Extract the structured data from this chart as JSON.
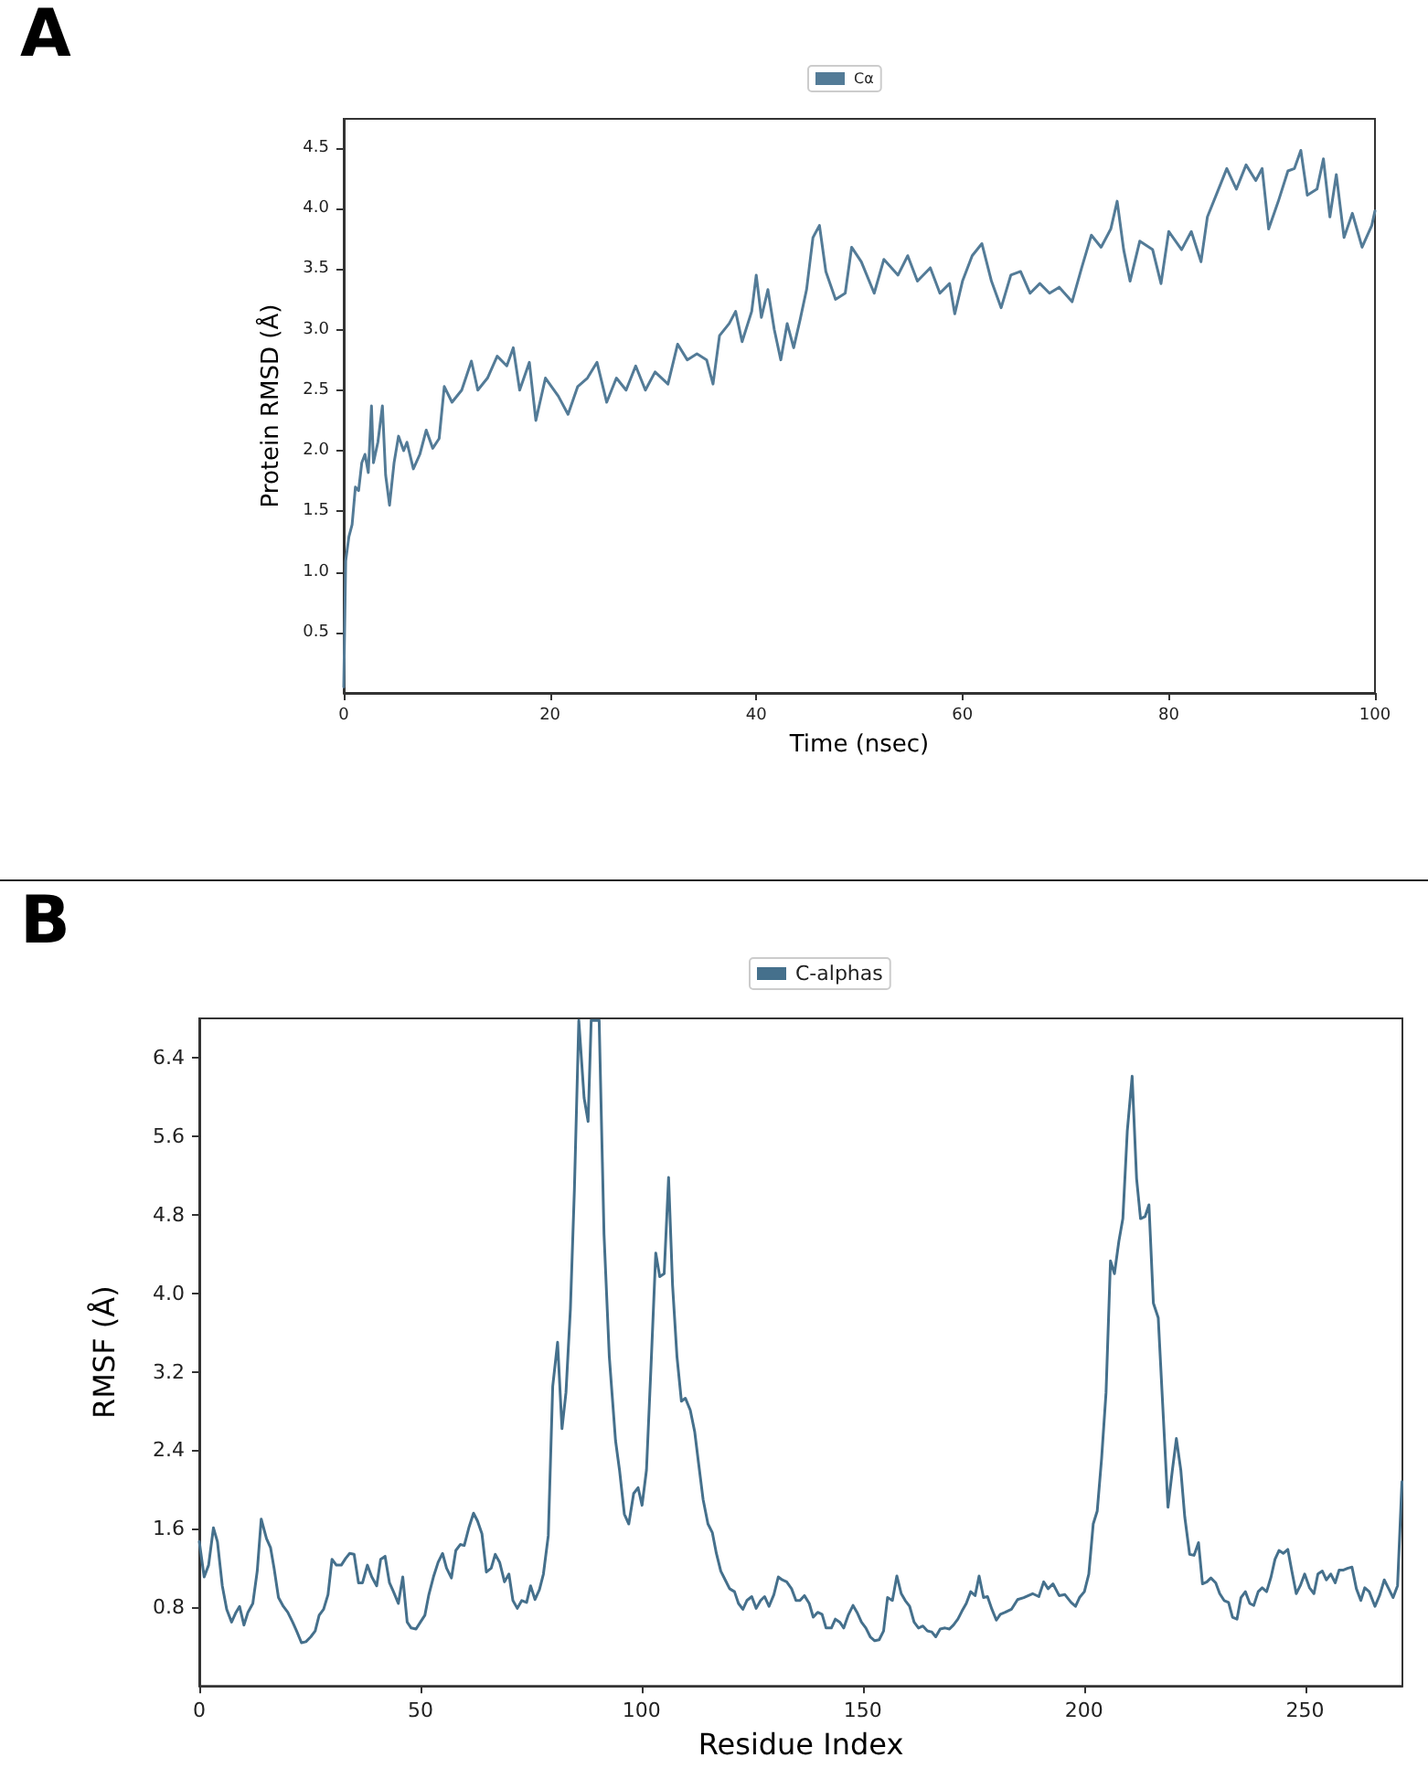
{
  "chart_data": [
    {
      "type": "line",
      "title": "A",
      "xlabel": "Time (nsec)",
      "ylabel": "Protein RMSD (Å)",
      "legend": "top",
      "grid": false,
      "marker": "none",
      "line_style": "solid",
      "xlim": [
        0,
        100
      ],
      "xticks": [
        0,
        20,
        40,
        60,
        80,
        100
      ],
      "ylim": [
        0,
        4.74
      ],
      "yticks": [
        0.5,
        {
          "value": 1,
          "label": "1.0"
        },
        1.5,
        {
          "value": 2,
          "label": "2.0"
        },
        2.5,
        {
          "value": 3,
          "label": "3.0"
        },
        3.5,
        {
          "value": 4,
          "label": "4.0"
        },
        4.5
      ],
      "series": [
        {
          "name": "Cα",
          "color": "#537b97",
          "x": [
            0,
            0.19,
            0.5,
            0.81,
            1.13,
            1.44,
            1.75,
            2.06,
            2.38,
            2.69,
            2.88,
            3.31,
            3.75,
            4.06,
            4.44,
            4.88,
            5.31,
            5.81,
            6.13,
            6.75,
            7.38,
            8.0,
            8.63,
            9.25,
            9.75,
            10.5,
            11.44,
            12.38,
            13.0,
            13.94,
            14.88,
            15.81,
            16.44,
            17.06,
            18.0,
            18.63,
            19.56,
            20.81,
            21.75,
            22.69,
            23.63,
            24.56,
            25.5,
            26.44,
            27.38,
            28.31,
            29.25,
            30.19,
            31.44,
            32.38,
            33.31,
            34.25,
            35.19,
            35.81,
            36.44,
            37.38,
            38.0,
            38.63,
            39.56,
            40.0,
            40.5,
            41.13,
            41.75,
            42.38,
            43.0,
            43.63,
            44.25,
            44.88,
            45.5,
            46.13,
            46.75,
            47.69,
            48.63,
            49.25,
            50.19,
            51.44,
            52.38,
            53.75,
            54.69,
            55.63,
            56.88,
            57.81,
            58.75,
            59.25,
            60.0,
            60.94,
            61.88,
            62.81,
            63.75,
            64.69,
            65.63,
            66.56,
            67.5,
            68.44,
            69.38,
            70.63,
            71.56,
            72.5,
            73.44,
            74.38,
            75.0,
            75.63,
            76.25,
            77.19,
            78.44,
            79.25,
            80.0,
            81.25,
            82.19,
            83.13,
            83.75,
            84.69,
            85.63,
            86.56,
            87.5,
            88.44,
            89.06,
            89.69,
            90.63,
            91.56,
            92.19,
            92.81,
            93.44,
            94.38,
            95.0,
            95.63,
            96.25,
            97.0,
            97.81,
            98.75,
            99.69,
            100
          ],
          "values": [
            0.05,
            1.09,
            1.29,
            1.39,
            1.7,
            1.67,
            1.9,
            1.97,
            1.82,
            2.37,
            1.9,
            2.07,
            2.37,
            1.8,
            1.55,
            1.9,
            2.12,
            2.0,
            2.07,
            1.85,
            1.97,
            2.17,
            2.02,
            2.1,
            2.53,
            2.4,
            2.5,
            2.74,
            2.5,
            2.6,
            2.78,
            2.7,
            2.85,
            2.5,
            2.73,
            2.25,
            2.6,
            2.45,
            2.3,
            2.53,
            2.6,
            2.73,
            2.4,
            2.6,
            2.5,
            2.7,
            2.5,
            2.65,
            2.55,
            2.88,
            2.75,
            2.8,
            2.75,
            2.55,
            2.95,
            3.05,
            3.15,
            2.9,
            3.15,
            3.45,
            3.1,
            3.33,
            3.0,
            2.75,
            3.05,
            2.85,
            3.08,
            3.33,
            3.76,
            3.86,
            3.48,
            3.25,
            3.3,
            3.68,
            3.56,
            3.3,
            3.58,
            3.45,
            3.61,
            3.4,
            3.51,
            3.3,
            3.38,
            3.13,
            3.4,
            3.61,
            3.71,
            3.4,
            3.18,
            3.45,
            3.48,
            3.3,
            3.38,
            3.3,
            3.35,
            3.23,
            3.51,
            3.78,
            3.68,
            3.83,
            4.06,
            3.66,
            3.4,
            3.73,
            3.66,
            3.38,
            3.81,
            3.66,
            3.81,
            3.56,
            3.93,
            4.13,
            4.33,
            4.16,
            4.36,
            4.23,
            4.33,
            3.83,
            4.06,
            4.31,
            4.33,
            4.48,
            4.11,
            4.16,
            4.41,
            3.93,
            4.28,
            3.76,
            3.96,
            3.68,
            3.86,
            3.98
          ]
        }
      ]
    },
    {
      "type": "line",
      "title": "B",
      "xlabel": "Residue Index",
      "ylabel": "RMSF (Å)",
      "legend": "top",
      "grid": false,
      "marker": "none",
      "line_style": "solid",
      "xlim": [
        0,
        272
      ],
      "xticks": [
        0,
        50,
        100,
        150,
        200,
        250
      ],
      "ylim": [
        0,
        6.8
      ],
      "yticks": [
        0.8,
        1.6,
        2.4,
        3.2,
        {
          "value": 4,
          "label": "4.0"
        },
        4.8,
        5.6,
        6.4
      ],
      "series": [
        {
          "name": "C-alphas",
          "color": "#45708c",
          "x": [
            0,
            1.1,
            2.1,
            3.2,
            4.1,
            5.2,
            6.2,
            7.3,
            8.3,
            9.1,
            10.1,
            11.0,
            12.1,
            13.1,
            14.0,
            15.2,
            16.1,
            16.9,
            17.9,
            19.0,
            20.0,
            21.1,
            22.0,
            23.1,
            24.1,
            25.2,
            26.2,
            27.1,
            28.1,
            29.1,
            30.0,
            31.0,
            32.1,
            33.1,
            34.0,
            35.0,
            36.0,
            36.9,
            38.0,
            39.0,
            40.1,
            41.0,
            42.0,
            43.0,
            43.9,
            45.0,
            46.0,
            47.0,
            47.9,
            49.0,
            50.0,
            51.0,
            51.9,
            53.0,
            54.0,
            55.0,
            55.9,
            57.0,
            58.0,
            59.0,
            59.9,
            61.0,
            62.0,
            62.9,
            63.9,
            64.9,
            66.0,
            66.9,
            67.9,
            69.0,
            70.0,
            70.9,
            71.9,
            72.9,
            74.0,
            74.9,
            75.9,
            76.9,
            77.8,
            78.9,
            79.9,
            81.0,
            82.0,
            82.9,
            83.9,
            84.8,
            85.8,
            87.0,
            87.9,
            88.6,
            90.4,
            91.5,
            92.7,
            94.1,
            95.0,
            96.1,
            97.1,
            98.2,
            99.2,
            100.1,
            101.1,
            102.1,
            103.2,
            104.1,
            105.1,
            106.1,
            107.0,
            108.0,
            109.0,
            109.9,
            111.0,
            112.0,
            112.9,
            113.9,
            115.0,
            116.0,
            116.9,
            117.9,
            118.9,
            119.9,
            121.0,
            121.9,
            122.9,
            123.8,
            124.9,
            125.9,
            126.9,
            127.8,
            128.8,
            129.9,
            130.9,
            131.8,
            132.8,
            133.9,
            134.9,
            135.8,
            136.8,
            137.9,
            138.8,
            139.8,
            140.8,
            141.7,
            142.9,
            143.8,
            144.8,
            145.7,
            146.7,
            147.8,
            148.7,
            149.7,
            150.7,
            151.7,
            152.7,
            153.7,
            154.7,
            155.6,
            156.7,
            157.7,
            158.7,
            159.6,
            160.6,
            161.6,
            162.6,
            163.6,
            164.6,
            165.6,
            166.5,
            167.5,
            168.6,
            169.6,
            170.5,
            171.5,
            172.4,
            173.4,
            174.4,
            175.4,
            176.3,
            177.3,
            178.2,
            179.2,
            180.2,
            181.1,
            182.2,
            183.6,
            185.0,
            186.4,
            188.4,
            189.8,
            190.9,
            191.9,
            193.0,
            194.4,
            195.7,
            197.1,
            198.1,
            199.0,
            200.1,
            201.1,
            202.1,
            203.0,
            204.0,
            205.0,
            206.0,
            206.9,
            207.9,
            208.8,
            209.8,
            210.9,
            211.9,
            212.8,
            213.8,
            214.7,
            215.7,
            216.8,
            217.8,
            219.0,
            220.0,
            220.9,
            221.9,
            222.8,
            223.9,
            224.9,
            225.9,
            226.8,
            227.8,
            228.7,
            229.8,
            230.7,
            231.7,
            232.7,
            233.6,
            234.6,
            235.5,
            236.5,
            237.5,
            238.4,
            239.4,
            240.3,
            241.3,
            242.3,
            243.2,
            244.1,
            245.1,
            246.1,
            247.0,
            248.0,
            248.9,
            249.9,
            251.0,
            252.0,
            252.9,
            253.9,
            254.8,
            255.8,
            256.8,
            257.7,
            258.7,
            259.7,
            260.6,
            261.6,
            262.6,
            263.5,
            264.5,
            265.8,
            266.9,
            267.9,
            268.8,
            269.9,
            270.9,
            271.9
          ],
          "values": [
            1.47,
            1.11,
            1.23,
            1.61,
            1.47,
            1.02,
            0.78,
            0.65,
            0.75,
            0.81,
            0.62,
            0.75,
            0.84,
            1.17,
            1.7,
            1.5,
            1.41,
            1.2,
            0.9,
            0.81,
            0.75,
            0.65,
            0.56,
            0.44,
            0.45,
            0.5,
            0.56,
            0.72,
            0.78,
            0.93,
            1.29,
            1.23,
            1.23,
            1.3,
            1.35,
            1.34,
            1.05,
            1.05,
            1.23,
            1.11,
            1.02,
            1.29,
            1.32,
            1.05,
            0.96,
            0.84,
            1.11,
            0.65,
            0.59,
            0.58,
            0.65,
            0.72,
            0.93,
            1.12,
            1.26,
            1.35,
            1.2,
            1.1,
            1.38,
            1.44,
            1.43,
            1.62,
            1.76,
            1.68,
            1.55,
            1.16,
            1.2,
            1.34,
            1.26,
            1.06,
            1.14,
            0.87,
            0.79,
            0.87,
            0.85,
            1.02,
            0.88,
            0.98,
            1.14,
            1.53,
            3.05,
            3.5,
            2.62,
            2.99,
            3.84,
            5.05,
            6.78,
            5.99,
            5.75,
            6.78,
            6.78,
            4.6,
            3.35,
            2.5,
            2.2,
            1.75,
            1.65,
            1.96,
            2.02,
            1.84,
            2.2,
            3.23,
            4.41,
            4.17,
            4.2,
            5.18,
            4.08,
            3.35,
            2.9,
            2.93,
            2.81,
            2.59,
            2.26,
            1.9,
            1.65,
            1.56,
            1.35,
            1.17,
            1.08,
            0.99,
            0.96,
            0.84,
            0.78,
            0.87,
            0.91,
            0.79,
            0.87,
            0.91,
            0.81,
            0.93,
            1.11,
            1.08,
            1.06,
            0.99,
            0.87,
            0.87,
            0.92,
            0.84,
            0.7,
            0.75,
            0.73,
            0.59,
            0.59,
            0.68,
            0.65,
            0.59,
            0.72,
            0.82,
            0.75,
            0.65,
            0.59,
            0.5,
            0.46,
            0.47,
            0.56,
            0.9,
            0.87,
            1.12,
            0.94,
            0.87,
            0.81,
            0.65,
            0.59,
            0.61,
            0.56,
            0.55,
            0.5,
            0.58,
            0.59,
            0.58,
            0.62,
            0.68,
            0.76,
            0.84,
            0.96,
            0.92,
            1.12,
            0.9,
            0.91,
            0.78,
            0.67,
            0.73,
            0.75,
            0.78,
            0.88,
            0.9,
            0.94,
            0.91,
            1.06,
            0.99,
            1.04,
            0.92,
            0.93,
            0.85,
            0.81,
            0.9,
            0.96,
            1.14,
            1.65,
            1.78,
            2.32,
            2.99,
            4.33,
            4.2,
            4.53,
            4.76,
            5.65,
            6.21,
            5.17,
            4.76,
            4.78,
            4.9,
            3.9,
            3.75,
            2.87,
            1.82,
            2.2,
            2.52,
            2.2,
            1.72,
            1.34,
            1.33,
            1.46,
            1.04,
            1.06,
            1.1,
            1.05,
            0.94,
            0.87,
            0.85,
            0.7,
            0.68,
            0.9,
            0.96,
            0.84,
            0.82,
            0.96,
            1.0,
            0.96,
            1.11,
            1.29,
            1.38,
            1.35,
            1.39,
            1.17,
            0.94,
            1.02,
            1.14,
            1.0,
            0.94,
            1.14,
            1.17,
            1.08,
            1.14,
            1.05,
            1.18,
            1.18,
            1.2,
            1.21,
            0.99,
            0.87,
            1.0,
            0.96,
            0.81,
            0.93,
            1.08,
            1.0,
            0.9,
            1.02,
            2.08
          ]
        }
      ]
    }
  ]
}
